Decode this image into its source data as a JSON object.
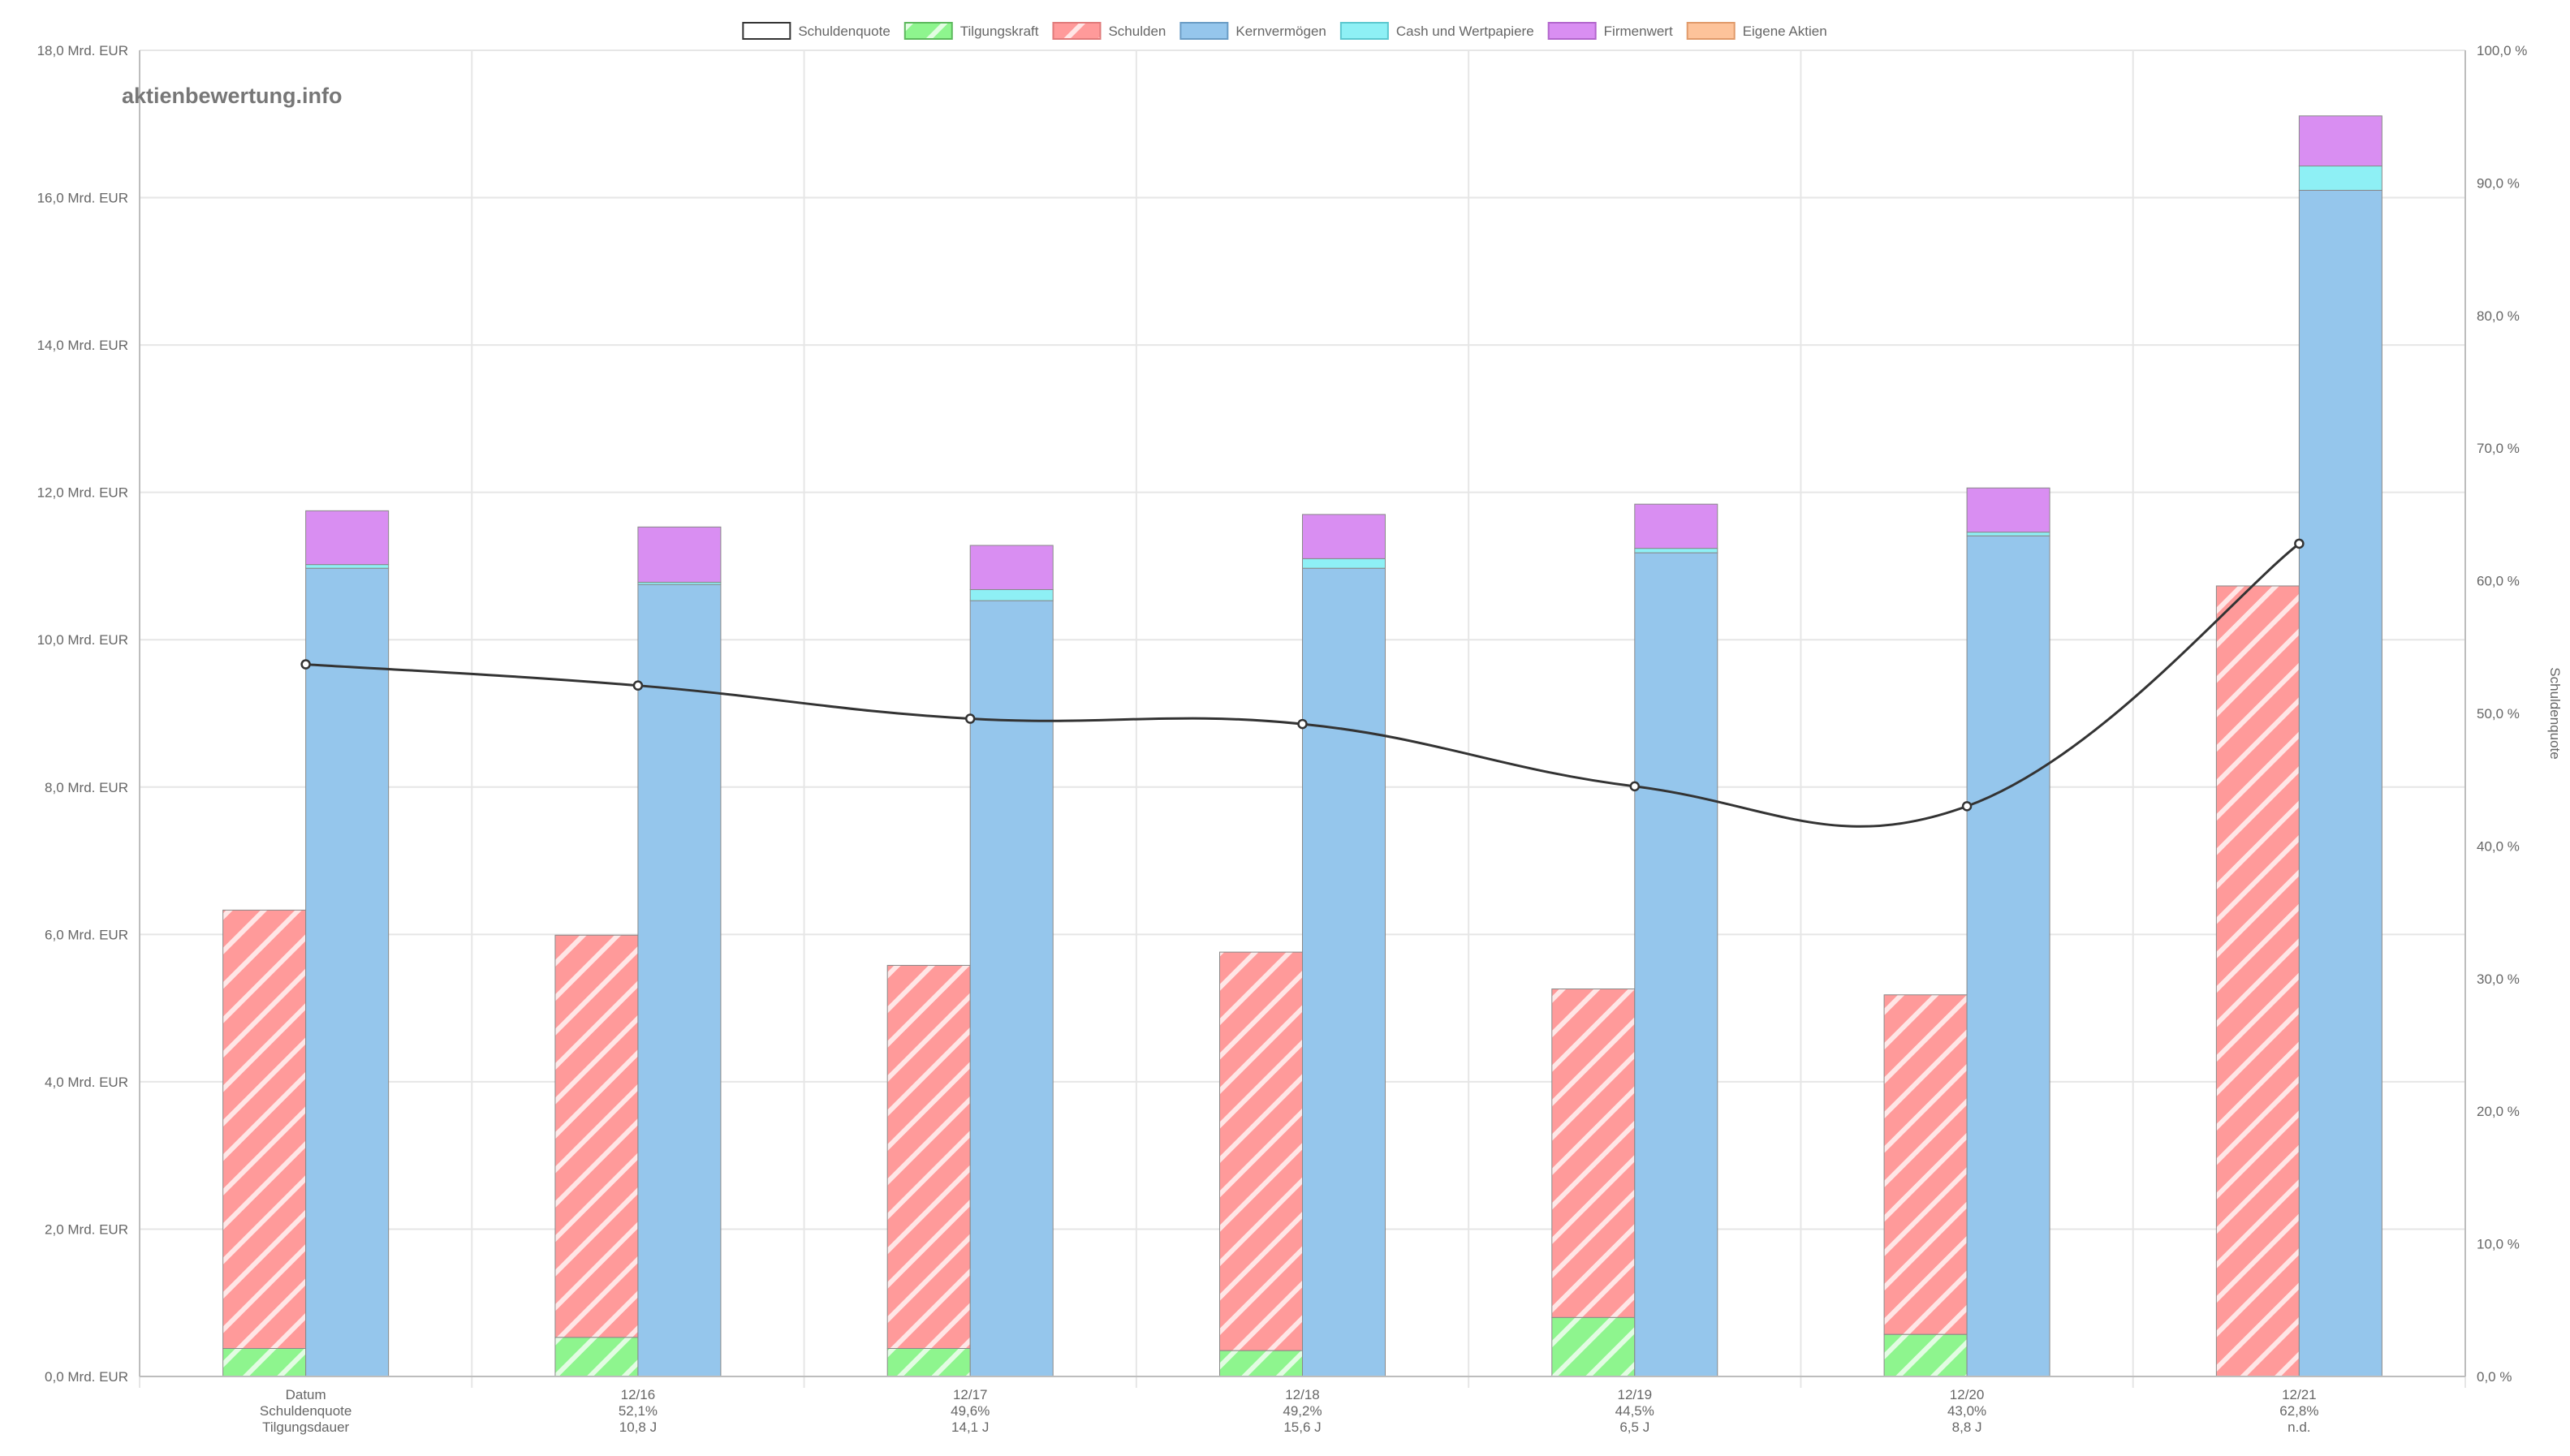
{
  "watermark": "aktienbewertung.info",
  "chart_data": {
    "type": "bar",
    "categories": [
      "Datum",
      "12/16",
      "12/17",
      "12/18",
      "12/19",
      "12/20",
      "12/21"
    ],
    "x_sublabels": [
      [
        "Schuldenquote",
        "Tilgungsdauer"
      ],
      [
        "52,1%",
        "10,8 J"
      ],
      [
        "49,6%",
        "14,1 J"
      ],
      [
        "49,2%",
        "15,6 J"
      ],
      [
        "44,5%",
        "6,5 J"
      ],
      [
        "43,0%",
        "8,8 J"
      ],
      [
        "62,8%",
        "n.d."
      ]
    ],
    "y_left": {
      "ylim": [
        0,
        18
      ],
      "ticks": [
        "0,0 Mrd. EUR",
        "2,0 Mrd. EUR",
        "4,0 Mrd. EUR",
        "6,0 Mrd. EUR",
        "8,0 Mrd. EUR",
        "10,0 Mrd. EUR",
        "12,0 Mrd. EUR",
        "14,0 Mrd. EUR",
        "16,0 Mrd. EUR",
        "18,0 Mrd. EUR"
      ]
    },
    "y_right": {
      "label": "Schuldenquote",
      "ylim": [
        0,
        100
      ],
      "ticks": [
        "0,0 %",
        "10,0 %",
        "20,0 %",
        "30,0 %",
        "40,0 %",
        "50,0 %",
        "60,0 %",
        "70,0 %",
        "80,0 %",
        "90,0 %",
        "100,0 %"
      ]
    },
    "legend": {
      "position": "top-center",
      "items": [
        {
          "name": "Schuldenquote",
          "fill": "#ffffff",
          "stroke": "#333333",
          "pattern": "none"
        },
        {
          "name": "Tilgungskraft",
          "fill": "#8ef58e",
          "stroke": "#5cb85c",
          "pattern": "stripes"
        },
        {
          "name": "Schulden",
          "fill": "#ff9a9a",
          "stroke": "#e07a7a",
          "pattern": "stripes"
        },
        {
          "name": "Kernvermögen",
          "fill": "#95c6ec",
          "stroke": "#6a9cc5",
          "pattern": "none"
        },
        {
          "name": "Cash und Wertpapiere",
          "fill": "#8ef0f5",
          "stroke": "#5cc8cf",
          "pattern": "none"
        },
        {
          "name": "Firmenwert",
          "fill": "#d98ef2",
          "stroke": "#b266cc",
          "pattern": "none"
        },
        {
          "name": "Eigene Aktien",
          "fill": "#fdc39a",
          "stroke": "#e09a6a",
          "pattern": "none"
        }
      ]
    },
    "stacks": {
      "debt": {
        "Tilgungskraft": [
          0.38,
          0.53,
          0.38,
          0.35,
          0.8,
          0.57,
          0
        ],
        "Schulden_total": [
          6.33,
          5.99,
          5.58,
          5.76,
          5.26,
          5.18,
          10.73
        ]
      },
      "assets": {
        "Kernvermögen": [
          10.97,
          10.75,
          10.53,
          10.97,
          11.18,
          11.41,
          16.1
        ],
        "Cash und Wertpapiere": [
          0.05,
          0.03,
          0.15,
          0.13,
          0.06,
          0.05,
          0.33
        ],
        "Firmenwert": [
          0.73,
          0.75,
          0.6,
          0.6,
          0.6,
          0.6,
          0.68
        ],
        "Eigene Aktien": [
          0,
          0,
          0,
          0,
          0,
          0,
          0
        ]
      }
    },
    "line": {
      "name": "Schuldenquote",
      "axis": "right",
      "values": [
        53.7,
        52.1,
        49.6,
        49.2,
        44.5,
        43.0,
        62.8
      ],
      "color": "#333333"
    },
    "grid": true
  }
}
